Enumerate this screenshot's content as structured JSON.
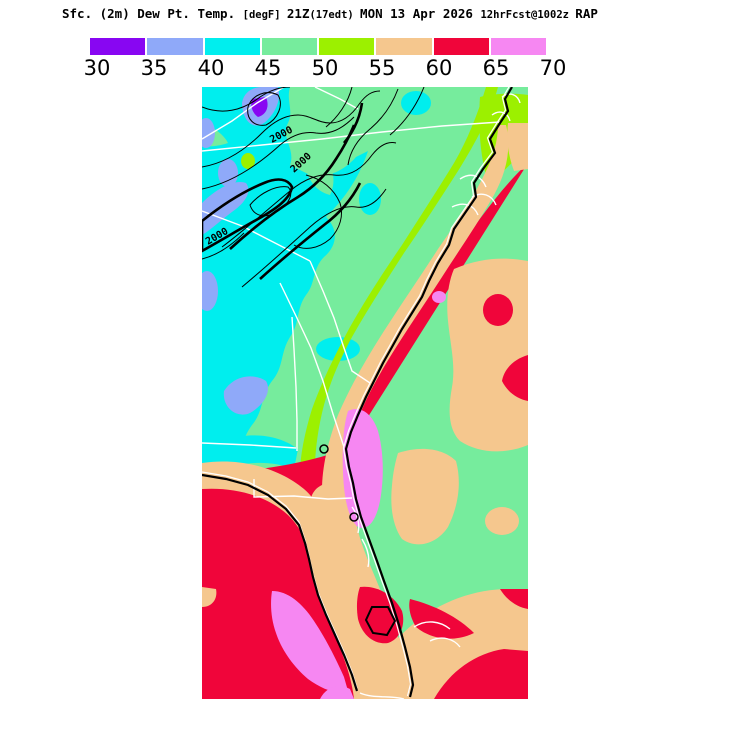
{
  "title": {
    "segments": [
      {
        "text": "Sfc. (2m) Dew Pt. Temp. ",
        "size": "base"
      },
      {
        "text": "[degF] ",
        "size": "sm"
      },
      {
        "text": "21Z",
        "size": "base"
      },
      {
        "text": "(17edt) ",
        "size": "sm"
      },
      {
        "text": "MON 13 Apr 2026 ",
        "size": "base"
      },
      {
        "text": "12hrFcst@1002z ",
        "size": "sm"
      },
      {
        "text": "RAP",
        "size": "base"
      }
    ],
    "full_text": "Sfc. (2m) Dew Pt. Temp. [degF] 21Z(17edt) MON 13 Apr 2026 12hrFcst@1002z RAP"
  },
  "colorbar": {
    "tick_labels": [
      "30",
      "35",
      "40",
      "45",
      "50",
      "55",
      "60",
      "65",
      "70"
    ],
    "values": [
      30,
      35,
      40,
      45,
      50,
      55,
      60,
      65,
      70
    ],
    "unit": "degF",
    "segments": [
      {
        "range": "30-35",
        "color": "#8806F2"
      },
      {
        "range": "35-40",
        "color": "#8FA9F9"
      },
      {
        "range": "40-45",
        "color": "#00EEEE"
      },
      {
        "range": "45-50",
        "color": "#76EC9D"
      },
      {
        "range": "50-55",
        "color": "#9CF000"
      },
      {
        "range": "55-60",
        "color": "#F5C78E"
      },
      {
        "range": "60-65",
        "color": "#F0053A"
      },
      {
        "range": "65-70",
        "color": "#F687F2"
      }
    ]
  },
  "colors": {
    "c30": "#8806F2",
    "c35": "#8FA9F9",
    "c40": "#00EEEE",
    "c45": "#76EC9D",
    "c50": "#9CF000",
    "c55": "#F5C78E",
    "c60": "#F0053A",
    "c65": "#F687F2",
    "border_white": "#FFFFFF",
    "line_black": "#000000"
  },
  "map": {
    "contour_labels": [
      "2000",
      "2000",
      "2000"
    ]
  }
}
